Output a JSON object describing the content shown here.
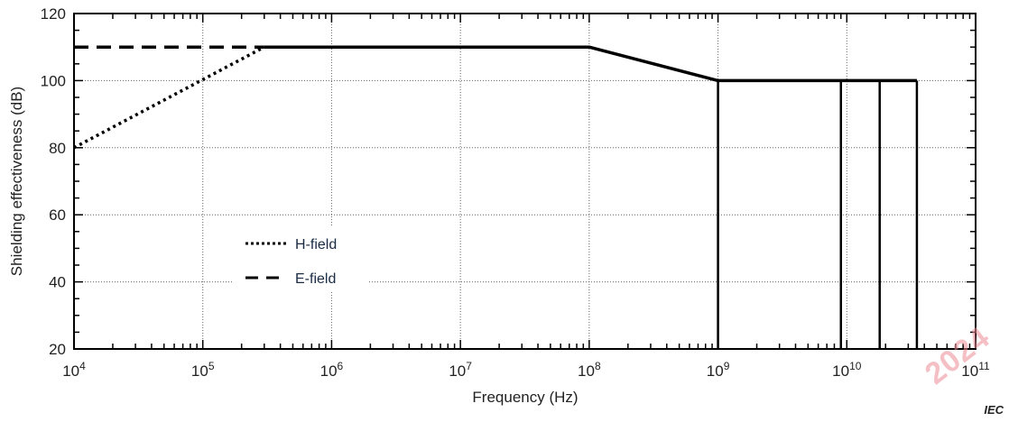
{
  "chart_data": {
    "type": "line",
    "title": "",
    "xlabel": "Frequency  (Hz)",
    "ylabel": "Shielding effectiveness  (dB)",
    "x_scale": "log",
    "xlim": [
      10000,
      100000000000
    ],
    "ylim": [
      20,
      120
    ],
    "x_tick_values": [
      10000,
      100000,
      1000000,
      10000000,
      100000000,
      1000000000,
      10000000000,
      100000000000
    ],
    "x_tick_labels": [
      {
        "base": "10",
        "exp": "4"
      },
      {
        "base": "10",
        "exp": "5"
      },
      {
        "base": "10",
        "exp": "6"
      },
      {
        "base": "10",
        "exp": "7"
      },
      {
        "base": "10",
        "exp": "8"
      },
      {
        "base": "10",
        "exp": "9"
      },
      {
        "base": "10",
        "exp": "10"
      },
      {
        "base": "10",
        "exp": "11"
      }
    ],
    "y_ticks": [
      20,
      40,
      60,
      80,
      100,
      120
    ],
    "grid": true,
    "legend": "center-left",
    "series": [
      {
        "name": "H-field",
        "style": "dotted",
        "color": "#000000",
        "x": [
          10000,
          300000
        ],
        "y": [
          80,
          110
        ]
      },
      {
        "name": "E-field",
        "style": "dashed",
        "color": "#000000",
        "x": [
          10000,
          300000
        ],
        "y": [
          110,
          110
        ]
      },
      {
        "style": "solid",
        "color": "#000000",
        "x": [
          300000,
          100000000,
          1000000000,
          35000000000
        ],
        "y": [
          110,
          110,
          100,
          100
        ]
      }
    ],
    "vertical_lines": [
      1000000000,
      9000000000,
      18000000000,
      35000000000
    ]
  },
  "footer": {
    "source_label": "IEC",
    "watermark": "2024"
  }
}
